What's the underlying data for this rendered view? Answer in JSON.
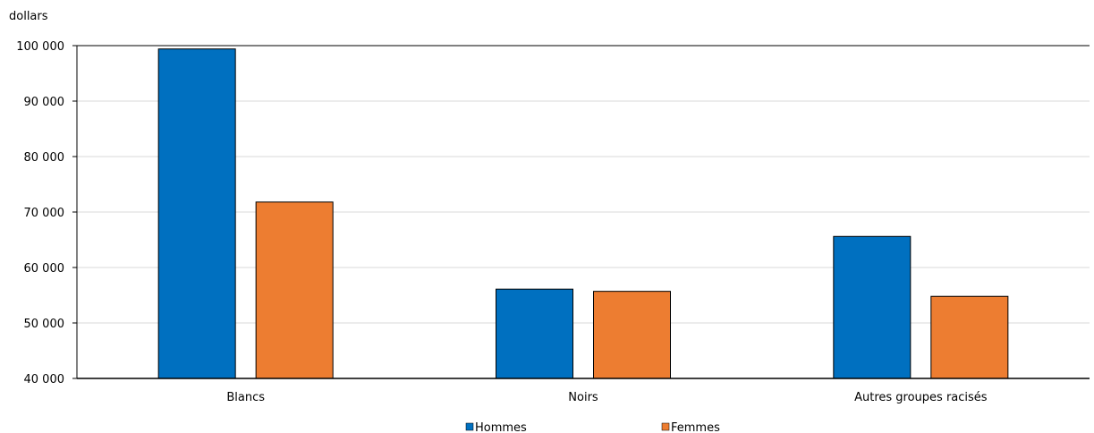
{
  "chart_data": {
    "type": "bar",
    "ylabel": "dollars",
    "categories": [
      "Blancs",
      "Noirs",
      "Autres groupes racisés"
    ],
    "series": [
      {
        "name": "Hommes",
        "color": "#0070C0",
        "values": [
          99400,
          56100,
          65600
        ]
      },
      {
        "name": "Femmes",
        "color": "#ED7D31",
        "values": [
          71800,
          55700,
          54800
        ]
      }
    ],
    "ylim": [
      40000,
      100000
    ],
    "yticks": [
      40000,
      50000,
      60000,
      70000,
      80000,
      90000,
      100000
    ],
    "ytick_labels": [
      "40 000",
      "50 000",
      "60 000",
      "70 000",
      "80 000",
      "90 000",
      "100 000"
    ],
    "grid": true,
    "legend_position": "bottom"
  }
}
